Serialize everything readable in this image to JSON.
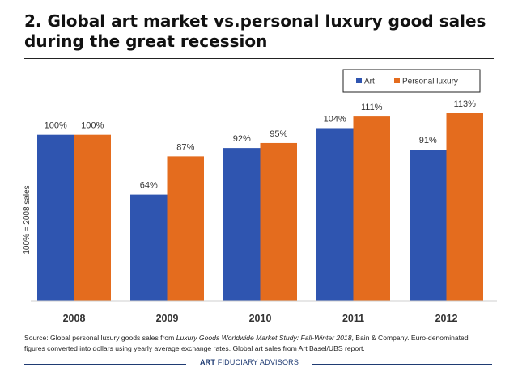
{
  "title": "2. Global art market vs.personal luxury good sales during the great recession",
  "source": {
    "p1": "Source: Global personal luxury goods sales from ",
    "p2": "Luxury Goods Worldwide Market Study: Fall-Winter 2018",
    "p3": ", Bain & Company. Euro-denominated figures converted into dollars using yearly average exchange rates. Global art sales from Art Basel/UBS report."
  },
  "brand": {
    "bold": "ART",
    "rest": "FIDUCIARY ADVISORS"
  },
  "colors": {
    "art": "#2f55b0",
    "luxury": "#e46c1e"
  },
  "chart_data": {
    "type": "bar",
    "categories": [
      "2008",
      "2009",
      "2010",
      "2011",
      "2012"
    ],
    "series": [
      {
        "name": "Art",
        "values": [
          100,
          64,
          92,
          104,
          91
        ],
        "labels": [
          "100%",
          "64%",
          "92%",
          "104%",
          "91%"
        ]
      },
      {
        "name": "Personal luxury",
        "values": [
          100,
          87,
          95,
          111,
          113
        ],
        "labels": [
          "100%",
          "87%",
          "95%",
          "111%",
          "113%"
        ]
      }
    ],
    "ylabel": "100% = 2008 sales",
    "ylim": [
      0,
      113
    ],
    "legend": "top-right",
    "grid": false
  }
}
